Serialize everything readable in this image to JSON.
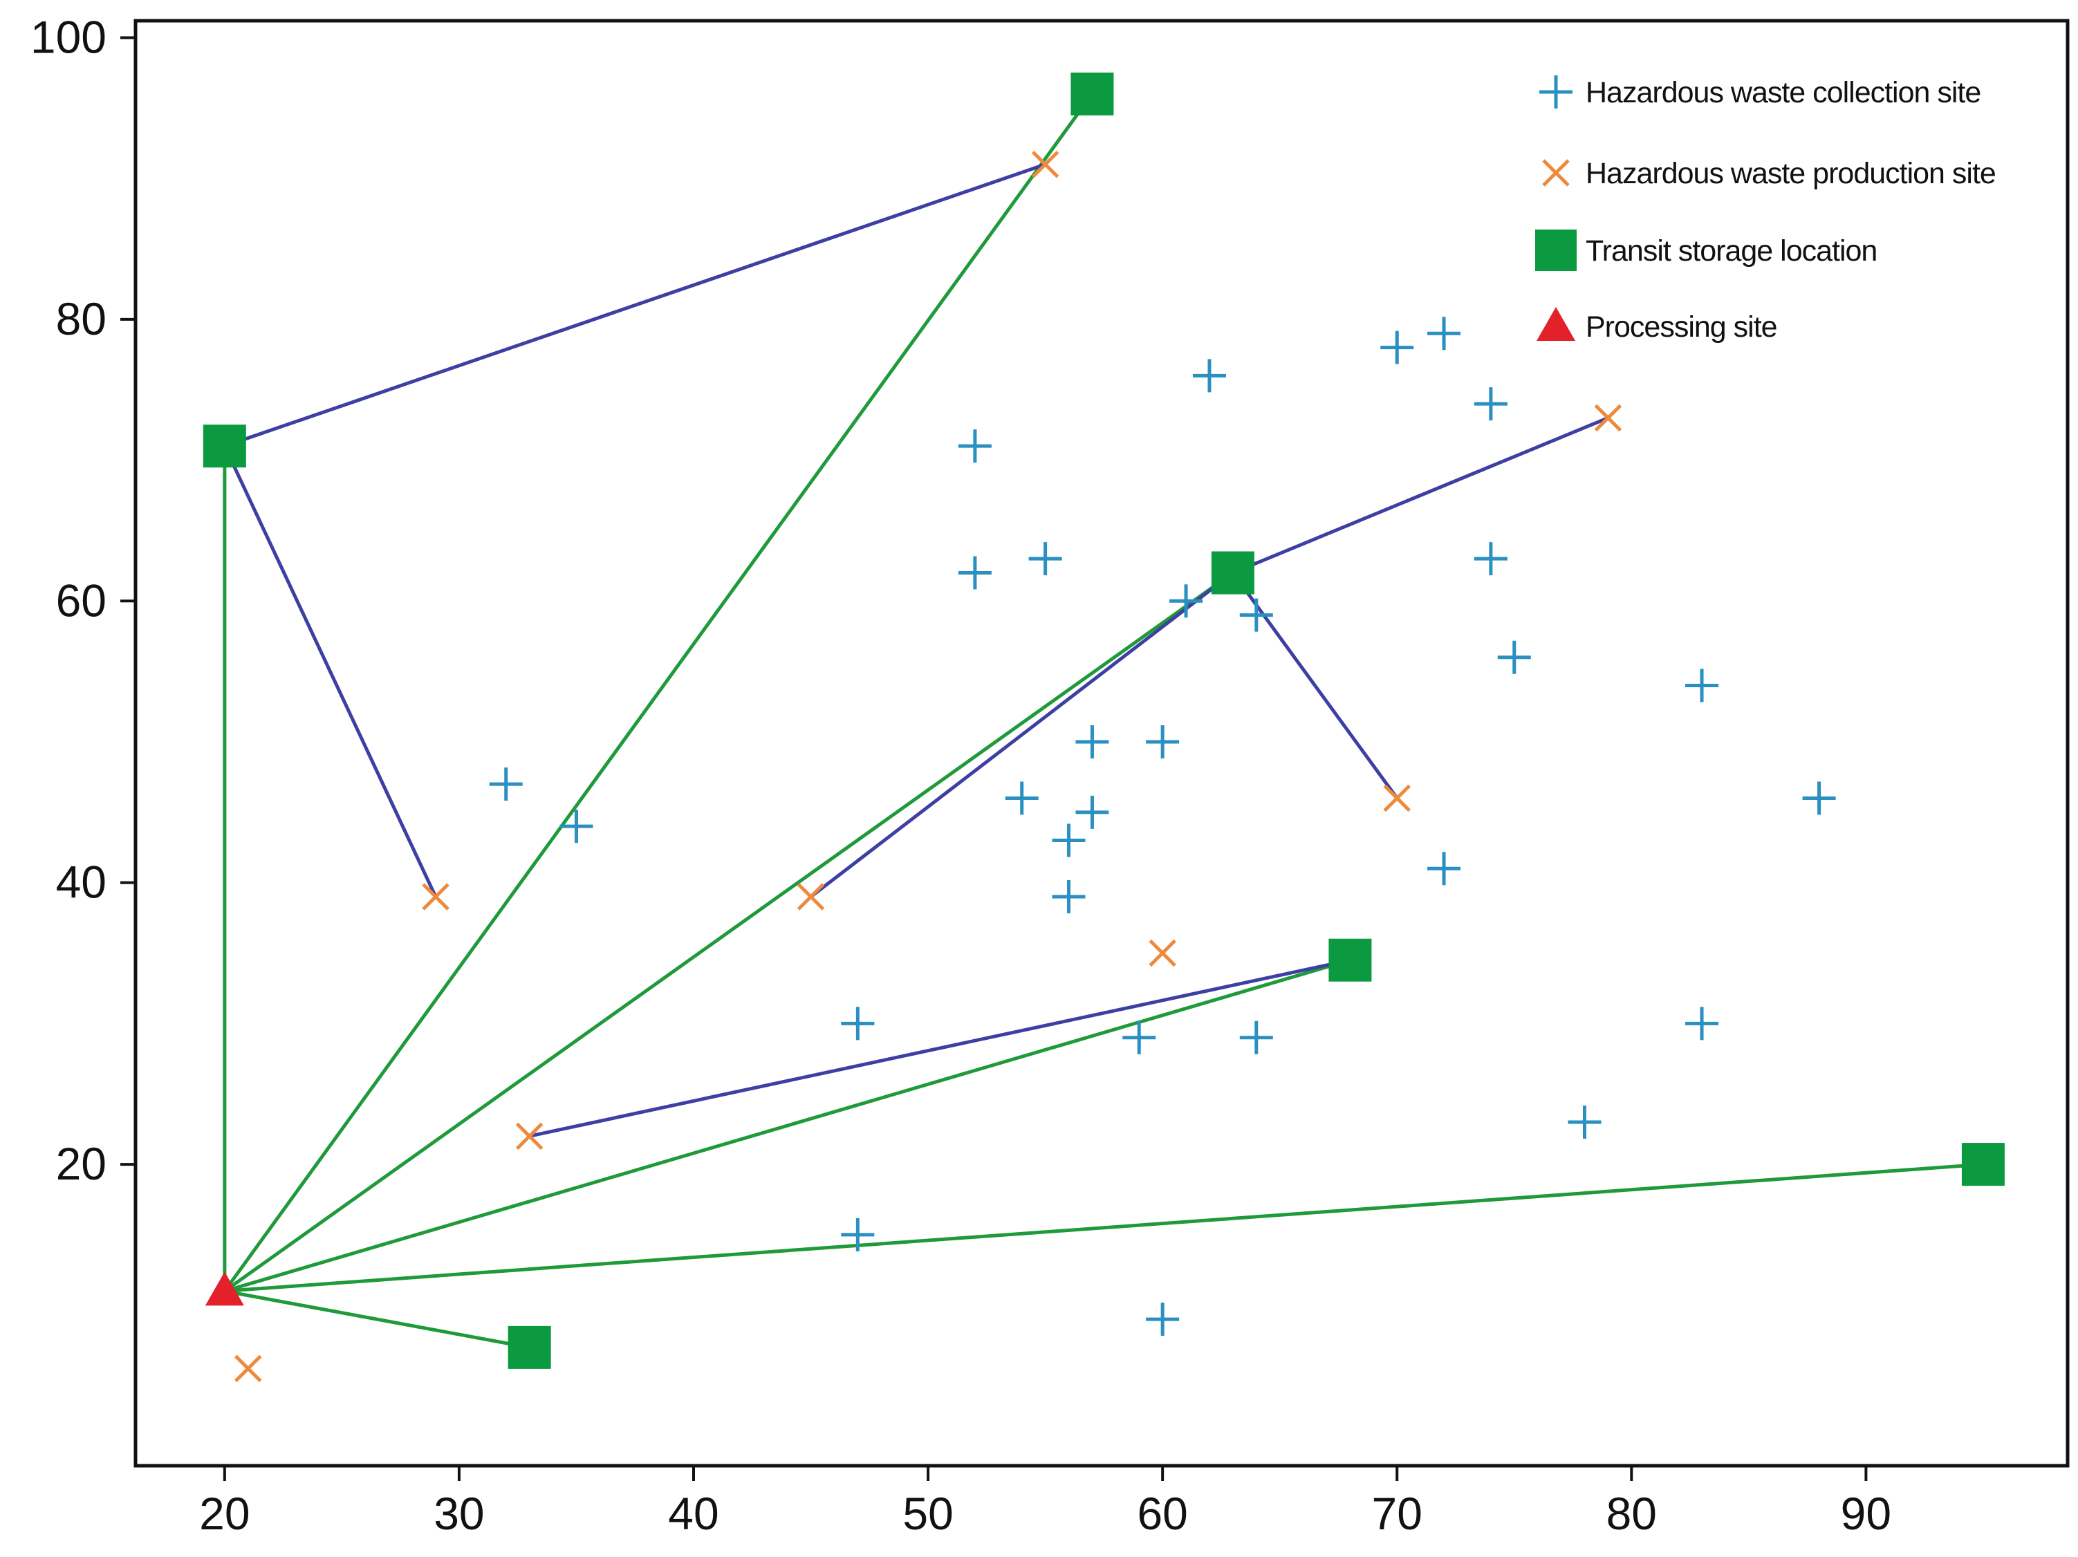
{
  "chart_data": {
    "type": "scatter",
    "title": "",
    "xlabel": "",
    "ylabel": "",
    "xlim": [
      16.2,
      98.6
    ],
    "ylim": [
      -1.4,
      101.2
    ],
    "xticks": [
      20,
      30,
      40,
      50,
      60,
      70,
      80,
      90
    ],
    "yticks": [
      20,
      40,
      60,
      80,
      100
    ],
    "grid": false,
    "legend_position": "top-right",
    "colors": {
      "collection": "#2a8fc1",
      "production": "#ee8a3c",
      "transit": "#0b9a3f",
      "processing": "#e2212b",
      "route_to_processing": "#1f9a3a",
      "route_production": "#3d3fa3",
      "axis": "#111111"
    },
    "legend": [
      {
        "key": "collection",
        "label": "Hazardous waste collection site"
      },
      {
        "key": "production",
        "label": "Hazardous waste production site"
      },
      {
        "key": "transit",
        "label": "Transit storage location"
      },
      {
        "key": "processing",
        "label": "Processing site"
      }
    ],
    "series": [
      {
        "name": "Hazardous waste collection site",
        "marker": "plus",
        "points": [
          [
            32,
            47
          ],
          [
            35,
            44
          ],
          [
            47,
            30
          ],
          [
            47,
            15
          ],
          [
            52,
            71
          ],
          [
            52,
            62
          ],
          [
            54,
            46
          ],
          [
            55,
            63
          ],
          [
            56,
            43
          ],
          [
            56,
            39
          ],
          [
            57,
            50
          ],
          [
            57,
            45
          ],
          [
            59,
            29
          ],
          [
            60,
            50
          ],
          [
            60,
            9
          ],
          [
            61,
            60
          ],
          [
            62,
            76
          ],
          [
            64,
            59
          ],
          [
            64,
            29
          ],
          [
            70,
            78
          ],
          [
            72,
            79
          ],
          [
            72,
            41
          ],
          [
            74,
            74
          ],
          [
            74,
            63
          ],
          [
            75,
            56
          ],
          [
            78,
            23
          ],
          [
            83,
            54
          ],
          [
            83,
            30
          ],
          [
            88,
            46
          ]
        ]
      },
      {
        "name": "Hazardous waste production site",
        "marker": "x",
        "points": [
          [
            21,
            5.5
          ],
          [
            29,
            39
          ],
          [
            33,
            22
          ],
          [
            45,
            39
          ],
          [
            55,
            91
          ],
          [
            60,
            35
          ],
          [
            70,
            46
          ],
          [
            79,
            73
          ]
        ]
      },
      {
        "name": "Transit storage location",
        "marker": "square",
        "points": [
          [
            20,
            71
          ],
          [
            57,
            96
          ],
          [
            63,
            62
          ],
          [
            68,
            34.5
          ],
          [
            33,
            7
          ],
          [
            95,
            20
          ]
        ]
      },
      {
        "name": "Processing site",
        "marker": "triangle",
        "points": [
          [
            20,
            11
          ]
        ]
      }
    ],
    "routes": [
      {
        "kind": "to-processing",
        "from": [
          20,
          11
        ],
        "to": [
          20,
          71
        ]
      },
      {
        "kind": "to-processing",
        "from": [
          20,
          11
        ],
        "to": [
          57,
          96
        ]
      },
      {
        "kind": "to-processing",
        "from": [
          20,
          11
        ],
        "to": [
          63,
          62
        ]
      },
      {
        "kind": "to-processing",
        "from": [
          20,
          11
        ],
        "to": [
          68,
          34.5
        ]
      },
      {
        "kind": "to-processing",
        "from": [
          20,
          11
        ],
        "to": [
          95,
          20
        ]
      },
      {
        "kind": "to-processing",
        "from": [
          20,
          11
        ],
        "to": [
          33,
          7
        ]
      },
      {
        "kind": "production-to-transit",
        "from": [
          20,
          71
        ],
        "to": [
          55,
          91
        ]
      },
      {
        "kind": "production-to-transit",
        "from": [
          20,
          71
        ],
        "to": [
          29,
          39
        ]
      },
      {
        "kind": "production-to-transit",
        "from": [
          63,
          62
        ],
        "to": [
          79,
          73
        ]
      },
      {
        "kind": "production-to-transit",
        "from": [
          63,
          62
        ],
        "to": [
          45,
          39
        ]
      },
      {
        "kind": "production-to-transit",
        "from": [
          63,
          62
        ],
        "to": [
          70,
          46
        ]
      },
      {
        "kind": "production-to-transit",
        "from": [
          68,
          34.5
        ],
        "to": [
          33,
          22
        ]
      }
    ]
  }
}
